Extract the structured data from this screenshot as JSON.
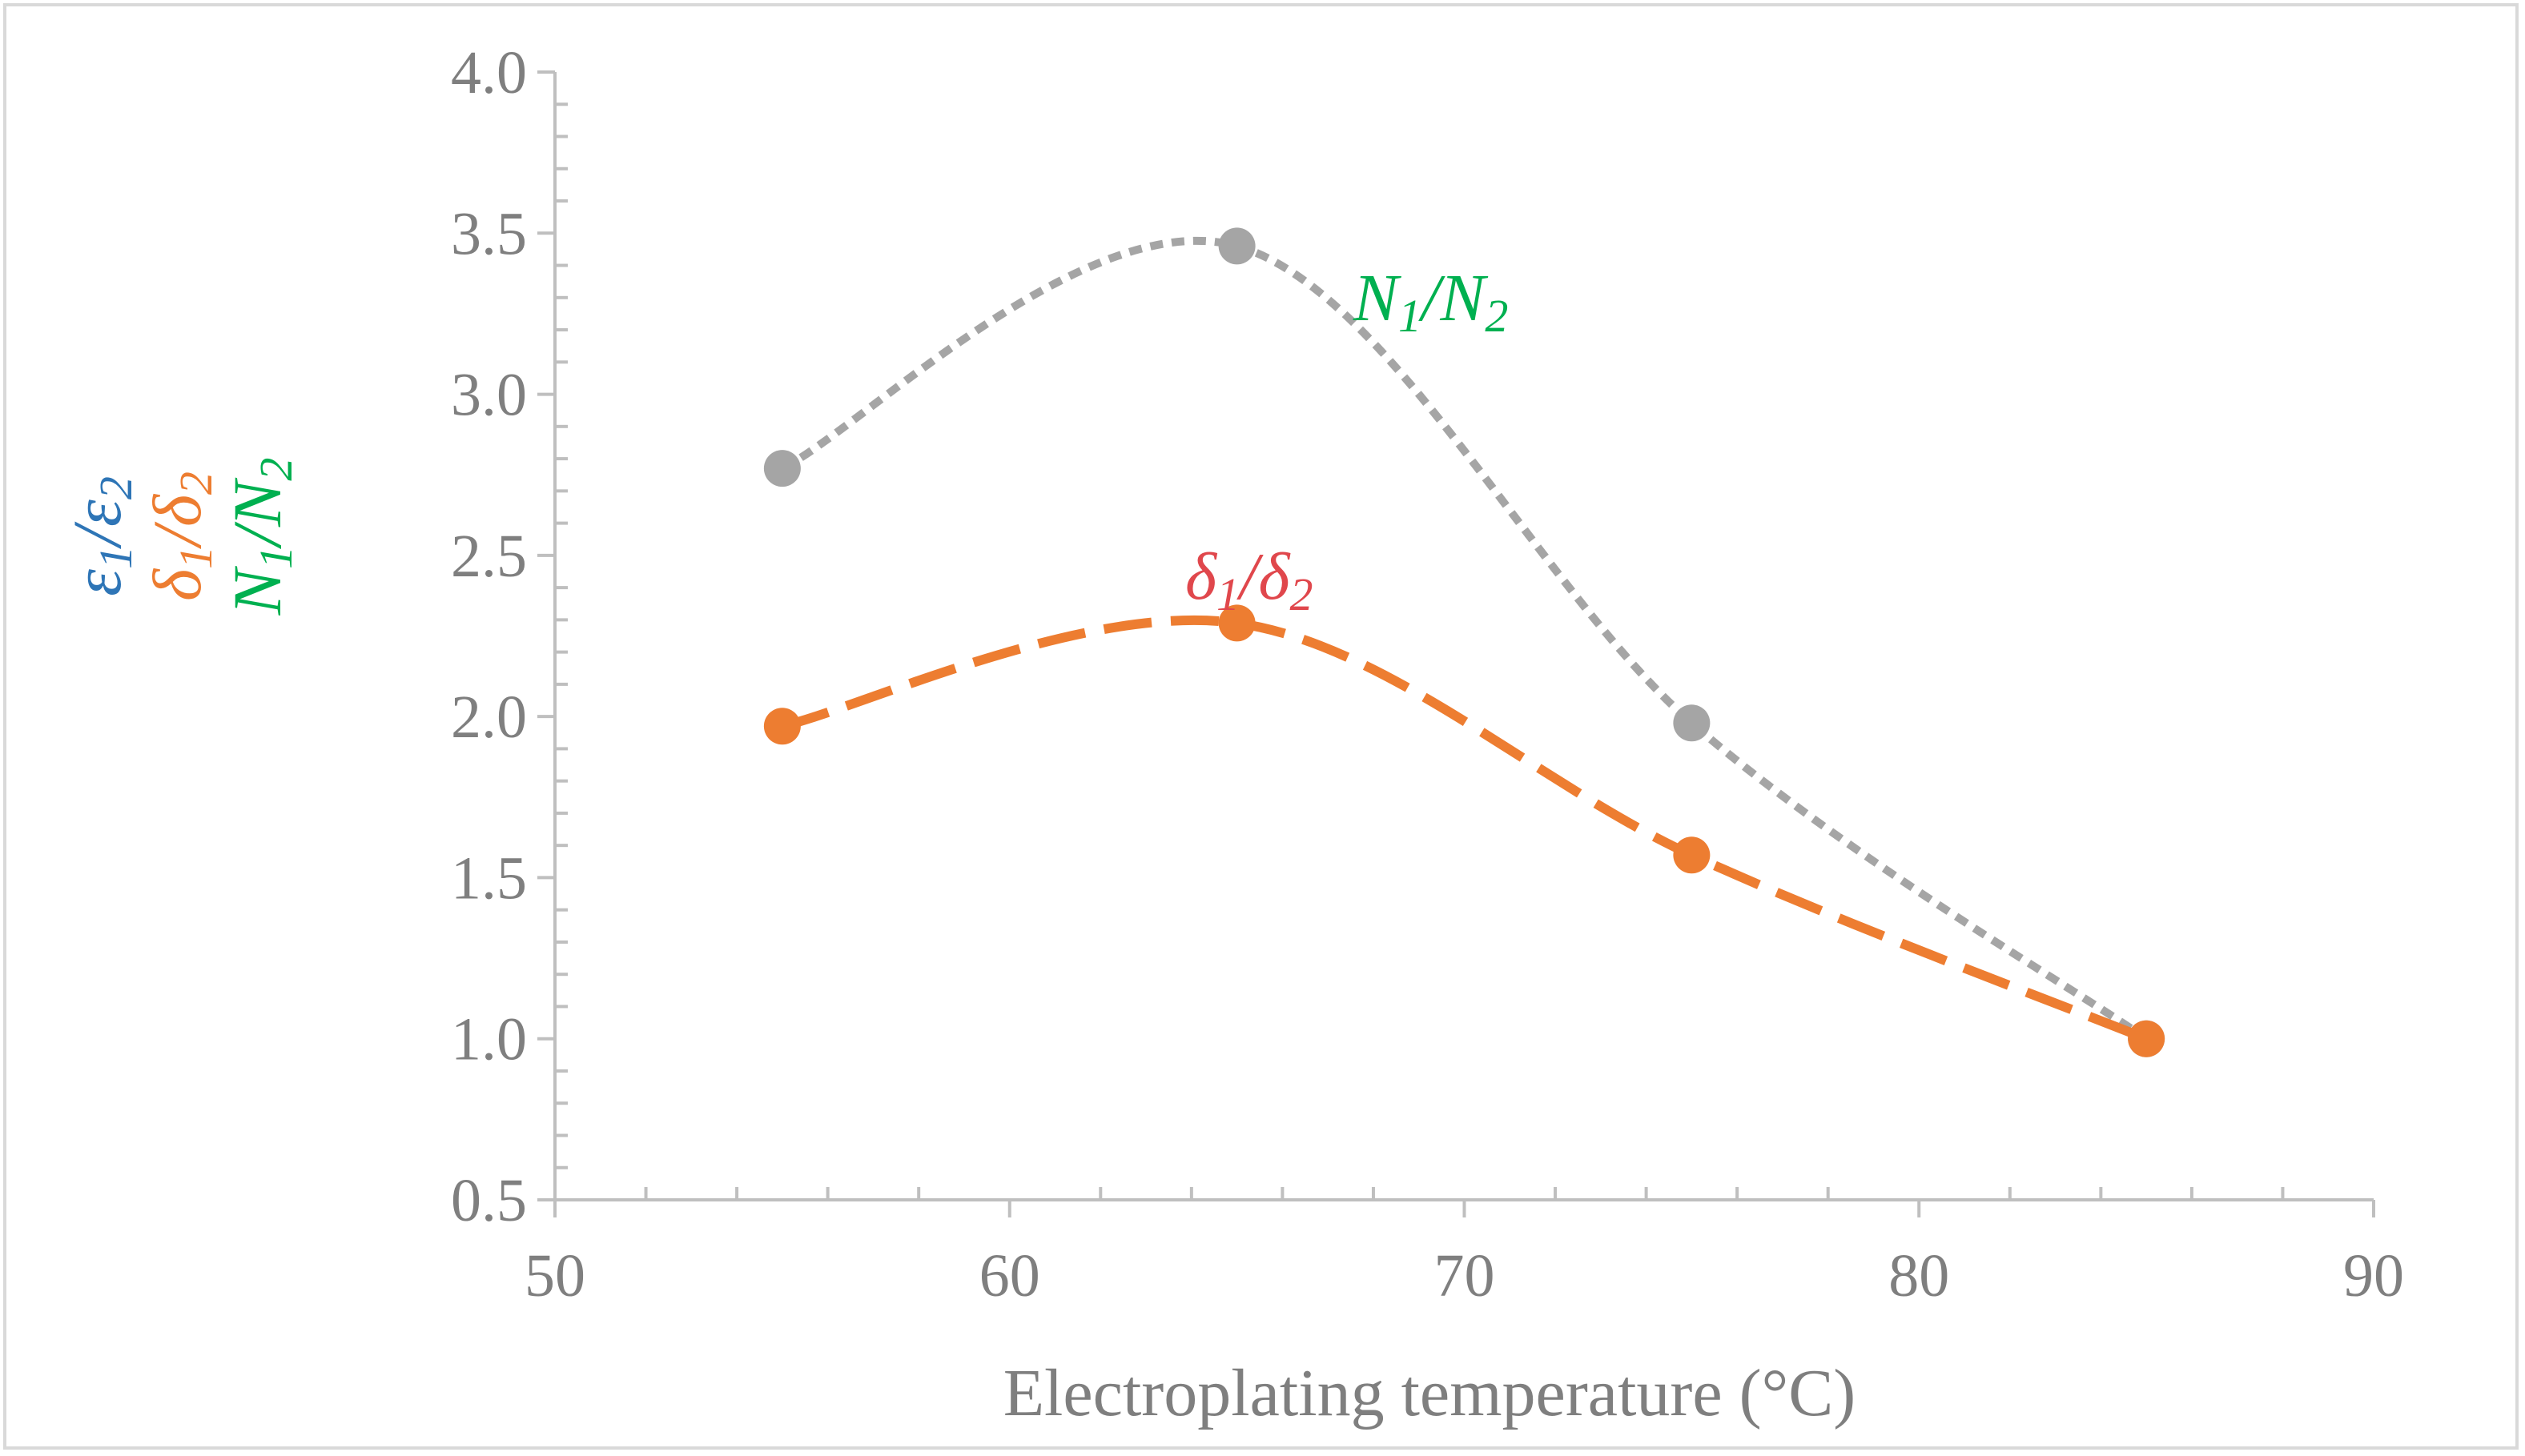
{
  "chart_data": {
    "type": "line",
    "title": "",
    "xlabel": "Electroplating temperature (°C)",
    "xlim": [
      50,
      90
    ],
    "ylim": [
      0.5,
      4.0
    ],
    "x_ticks": [
      "50",
      "60",
      "70",
      "80",
      "90"
    ],
    "y_ticks": [
      "0.5",
      "1.0",
      "1.5",
      "2.0",
      "2.5",
      "3.0",
      "3.5",
      "4.0"
    ],
    "ylabel_parts": [
      {
        "base1": "ε",
        "sub1": "1",
        "slash": "/",
        "base2": "ε",
        "sub2": "2",
        "color": "#2e75b6"
      },
      {
        "base1": "δ",
        "sub1": "1",
        "slash": "/",
        "base2": "δ",
        "sub2": "2",
        "color": "#ed7d31"
      },
      {
        "base1": "N",
        "sub1": "1",
        "slash": "/",
        "base2": "N",
        "sub2": "2",
        "color": "#00b050"
      }
    ],
    "series": [
      {
        "name": "N1/N2",
        "label_base1": "N",
        "label_sub1": "1",
        "label_slash": "/",
        "label_base2": "N",
        "label_sub2": "2",
        "label_color": "#00b050",
        "color": "#a5a5a5",
        "style": "dotted",
        "x": [
          55,
          65,
          75,
          85
        ],
        "values": [
          2.77,
          3.46,
          1.98,
          1.0
        ]
      },
      {
        "name": "δ1/δ2",
        "label_base1": "δ",
        "label_sub1": "1",
        "label_slash": "/",
        "label_base2": "δ",
        "label_sub2": "2",
        "label_color": "#e0474c",
        "color": "#ed7d31",
        "style": "dashed",
        "x": [
          55,
          65,
          75,
          85
        ],
        "values": [
          1.97,
          2.29,
          1.57,
          1.0
        ]
      }
    ]
  }
}
